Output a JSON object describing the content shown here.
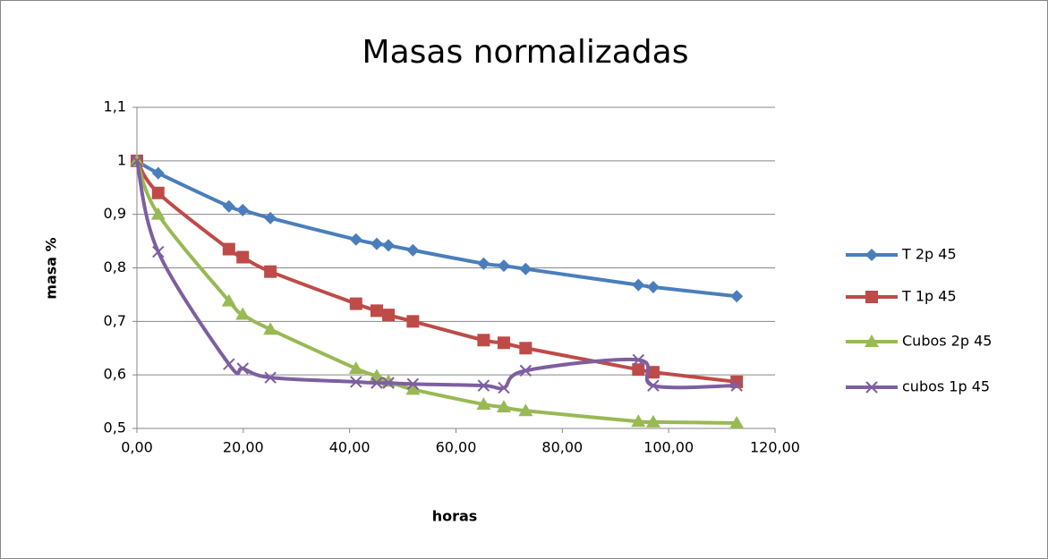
{
  "chart_data": {
    "type": "line",
    "title": "Masas normalizadas",
    "x_label": "horas",
    "y_label": "masa %",
    "x": [
      0,
      4,
      17.3,
      19.9,
      25.1,
      41.2,
      45.1,
      47.3,
      51.9,
      65.2,
      69.0,
      73.1,
      94.3,
      97.1,
      112.8
    ],
    "series": [
      {
        "name": "T 2p 45",
        "color": "#4a7ebb",
        "marker": "diamond",
        "values": [
          1,
          0.977,
          0.915,
          0.908,
          0.893,
          0.853,
          0.845,
          0.842,
          0.833,
          0.808,
          0.804,
          0.798,
          0.768,
          0.764,
          0.747
        ]
      },
      {
        "name": "T 1p 45",
        "color": "#be4b48",
        "marker": "square",
        "values": [
          1,
          0.94,
          0.835,
          0.82,
          0.793,
          0.733,
          0.72,
          0.712,
          0.7,
          0.665,
          0.66,
          0.65,
          0.61,
          0.605,
          0.587
        ]
      },
      {
        "name": "Cubos 2p 45",
        "color": "#98b954",
        "marker": "triangle",
        "values": [
          1,
          0.9,
          0.738,
          0.713,
          0.685,
          0.612,
          0.598,
          0.588,
          0.573,
          0.545,
          0.54,
          0.533,
          0.513,
          0.512,
          0.51
        ]
      },
      {
        "name": "cubos 1p 45",
        "color": "#7d5fa0",
        "marker": "x",
        "values": [
          1,
          0.83,
          0.62,
          0.612,
          0.595,
          0.587,
          0.585,
          0.585,
          0.583,
          0.58,
          0.576,
          0.608,
          0.628,
          0.58,
          0.58
        ]
      }
    ],
    "xlim": [
      0,
      120
    ],
    "xticks": [
      {
        "value": 0,
        "label": "0,00"
      },
      {
        "value": 20,
        "label": "20,00"
      },
      {
        "value": 40,
        "label": "40,00"
      },
      {
        "value": 60,
        "label": "60,00"
      },
      {
        "value": 80,
        "label": "80,00"
      },
      {
        "value": 100,
        "label": "100,00"
      },
      {
        "value": 120,
        "label": "120,00"
      }
    ],
    "ylim": [
      0.5,
      1.1
    ],
    "yticks": [
      {
        "value": 0.5,
        "label": "0,5"
      },
      {
        "value": 0.6,
        "label": "0,6"
      },
      {
        "value": 0.7,
        "label": "0,7"
      },
      {
        "value": 0.8,
        "label": "0,8"
      },
      {
        "value": 0.9,
        "label": "0,9"
      },
      1,
      {
        "value": 1.1,
        "label": "1,1"
      }
    ],
    "grid": true,
    "legend": "right",
    "smooth": true
  }
}
